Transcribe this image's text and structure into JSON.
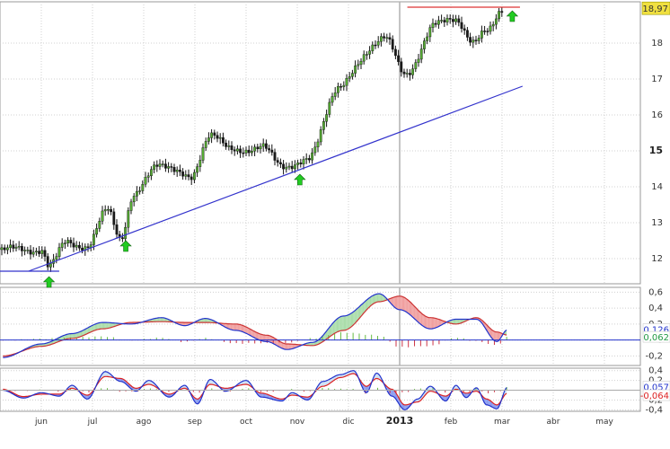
{
  "chart_data": [
    {
      "type": "candlestick",
      "panel": "price",
      "ylim": [
        11.3,
        19.15
      ],
      "y_ticks": [
        12,
        13,
        14,
        15,
        16,
        17,
        18
      ],
      "y_tick_labels": [
        "12",
        "13",
        "14",
        "15",
        "16",
        "17",
        "18"
      ],
      "bold_ticks": [
        "15"
      ],
      "last_value": 18.97,
      "last_value_label": "18,97",
      "x_months": [
        "jun",
        "jul",
        "ago",
        "sep",
        "oct",
        "nov",
        "dic",
        "2013",
        "feb",
        "mar",
        "abr",
        "may"
      ],
      "bold_months": [
        "2013"
      ],
      "series": [
        {
          "name": "close",
          "anchors": [
            {
              "month": 0,
              "value": 12.25
            },
            {
              "month": 0.15,
              "value": 11.75
            },
            {
              "month": 0.5,
              "value": 12.5
            },
            {
              "month": 0.9,
              "value": 12.3
            },
            {
              "month": 1.3,
              "value": 13.4
            },
            {
              "month": 1.55,
              "value": 12.6
            },
            {
              "month": 1.8,
              "value": 13.7
            },
            {
              "month": 2.3,
              "value": 14.7
            },
            {
              "month": 2.9,
              "value": 14.2
            },
            {
              "month": 3.3,
              "value": 15.5
            },
            {
              "month": 3.7,
              "value": 15.0
            },
            {
              "month": 4.3,
              "value": 15.1
            },
            {
              "month": 4.7,
              "value": 14.6
            },
            {
              "month": 5.2,
              "value": 14.7
            },
            {
              "month": 5.8,
              "value": 16.8
            },
            {
              "month": 6.7,
              "value": 18.2
            },
            {
              "month": 7.1,
              "value": 17.1
            },
            {
              "month": 7.7,
              "value": 18.5
            },
            {
              "month": 8.1,
              "value": 18.7
            },
            {
              "month": 8.45,
              "value": 18.0
            },
            {
              "month": 8.7,
              "value": 18.3
            },
            {
              "month": 9.0,
              "value": 18.97
            }
          ]
        }
      ],
      "trendlines": [
        {
          "name": "support",
          "color": "#3333cc",
          "from": {
            "month": -0.25,
            "value": 11.65
          },
          "to": {
            "month": 9.4,
            "value": 16.8
          }
        },
        {
          "name": "base",
          "color": "#3333cc",
          "from": {
            "month": -1.0,
            "value": 11.65
          },
          "to": {
            "month": 0.35,
            "value": 11.65
          }
        },
        {
          "name": "resistance",
          "color": "#dd3333",
          "from": {
            "month": 7.15,
            "value": 19.0
          },
          "to": {
            "month": 9.35,
            "value": 19.0
          }
        }
      ],
      "signals": [
        {
          "name": "buy",
          "month": 0.15,
          "value": 11.35
        },
        {
          "name": "buy",
          "month": 1.65,
          "value": 12.35
        },
        {
          "name": "buy",
          "month": 5.05,
          "value": 14.2
        },
        {
          "name": "buy",
          "month": 9.2,
          "value": 18.75
        }
      ],
      "colors": {
        "candle": "#111111",
        "up": "#55aa33",
        "down": "#1a1a1a",
        "label_bg": "#f0e040"
      }
    },
    {
      "type": "oscillator",
      "panel": "indicator_1",
      "ylim": [
        -0.32,
        0.66
      ],
      "y_ticks": [
        0.6,
        0.4,
        0.2,
        0,
        -0.2
      ],
      "y_tick_labels": [
        "0,6",
        "0,4",
        "0,2",
        "0",
        "-0,2"
      ],
      "last_values": [
        0.126,
        0.062
      ],
      "last_labels": [
        "0,126",
        "0,062"
      ],
      "series": [
        {
          "name": "fast",
          "anchors": [
            {
              "month": -0.75,
              "value": -0.22
            },
            {
              "month": 0.0,
              "value": -0.05
            },
            {
              "month": 0.6,
              "value": 0.08
            },
            {
              "month": 1.2,
              "value": 0.22
            },
            {
              "month": 1.75,
              "value": 0.2
            },
            {
              "month": 2.35,
              "value": 0.28
            },
            {
              "month": 2.8,
              "value": 0.18
            },
            {
              "month": 3.2,
              "value": 0.27
            },
            {
              "month": 3.8,
              "value": 0.12
            },
            {
              "month": 4.4,
              "value": -0.02
            },
            {
              "month": 4.8,
              "value": -0.12
            },
            {
              "month": 5.3,
              "value": -0.03
            },
            {
              "month": 5.9,
              "value": 0.3
            },
            {
              "month": 6.6,
              "value": 0.58
            },
            {
              "month": 7.0,
              "value": 0.38
            },
            {
              "month": 7.6,
              "value": 0.14
            },
            {
              "month": 8.1,
              "value": 0.26
            },
            {
              "month": 8.5,
              "value": 0.26
            },
            {
              "month": 8.9,
              "value": -0.02
            },
            {
              "month": 9.1,
              "value": 0.126
            }
          ]
        },
        {
          "name": "slow",
          "anchors": [
            {
              "month": -0.75,
              "value": -0.2
            },
            {
              "month": 0.0,
              "value": -0.08
            },
            {
              "month": 0.6,
              "value": 0.02
            },
            {
              "month": 1.2,
              "value": 0.14
            },
            {
              "month": 1.75,
              "value": 0.22
            },
            {
              "month": 2.35,
              "value": 0.23
            },
            {
              "month": 2.8,
              "value": 0.22
            },
            {
              "month": 3.2,
              "value": 0.22
            },
            {
              "month": 3.8,
              "value": 0.2
            },
            {
              "month": 4.4,
              "value": 0.06
            },
            {
              "month": 4.8,
              "value": -0.05
            },
            {
              "month": 5.3,
              "value": -0.07
            },
            {
              "month": 5.9,
              "value": 0.12
            },
            {
              "month": 6.6,
              "value": 0.48
            },
            {
              "month": 7.0,
              "value": 0.55
            },
            {
              "month": 7.6,
              "value": 0.28
            },
            {
              "month": 8.1,
              "value": 0.2
            },
            {
              "month": 8.5,
              "value": 0.28
            },
            {
              "month": 8.9,
              "value": 0.1
            },
            {
              "month": 9.1,
              "value": 0.062
            }
          ]
        }
      ],
      "colors": {
        "fast": "#2233cc",
        "slow": "#cc3333",
        "fill_up": "#aaddaa",
        "fill_down": "#f0a0a0",
        "hist_up": "#66bb44",
        "hist_down": "#cc3344",
        "label_fast": "#2233cc",
        "label_slow": "#229944"
      }
    },
    {
      "type": "oscillator",
      "panel": "indicator_2",
      "ylim": [
        -0.43,
        0.45
      ],
      "y_ticks": [
        0.4,
        0.2,
        0,
        -0.2,
        -0.4
      ],
      "y_tick_labels": [
        "0,4",
        "0,2",
        "0",
        "-0,2",
        "-0,4"
      ],
      "last_values": [
        0.057,
        -0.064
      ],
      "last_labels": [
        "0,057",
        "-0,064"
      ],
      "series": [
        {
          "name": "fast",
          "anchors": [
            {
              "month": -0.75,
              "value": 0.0
            },
            {
              "month": -0.35,
              "value": -0.16
            },
            {
              "month": 0.0,
              "value": -0.05
            },
            {
              "month": 0.35,
              "value": -0.12
            },
            {
              "month": 0.6,
              "value": 0.1
            },
            {
              "month": 0.9,
              "value": -0.18
            },
            {
              "month": 1.25,
              "value": 0.38
            },
            {
              "month": 1.55,
              "value": 0.18
            },
            {
              "month": 1.85,
              "value": -0.02
            },
            {
              "month": 2.1,
              "value": 0.2
            },
            {
              "month": 2.5,
              "value": -0.14
            },
            {
              "month": 2.8,
              "value": 0.1
            },
            {
              "month": 3.05,
              "value": -0.28
            },
            {
              "month": 3.3,
              "value": 0.22
            },
            {
              "month": 3.6,
              "value": -0.02
            },
            {
              "month": 4.0,
              "value": 0.2
            },
            {
              "month": 4.3,
              "value": -0.14
            },
            {
              "month": 4.7,
              "value": -0.22
            },
            {
              "month": 4.9,
              "value": -0.05
            },
            {
              "month": 5.2,
              "value": -0.2
            },
            {
              "month": 5.5,
              "value": 0.18
            },
            {
              "month": 5.85,
              "value": 0.32
            },
            {
              "month": 6.1,
              "value": 0.4
            },
            {
              "month": 6.35,
              "value": -0.05
            },
            {
              "month": 6.55,
              "value": 0.35
            },
            {
              "month": 6.85,
              "value": -0.12
            },
            {
              "month": 7.1,
              "value": -0.4
            },
            {
              "month": 7.35,
              "value": -0.18
            },
            {
              "month": 7.6,
              "value": 0.08
            },
            {
              "month": 7.9,
              "value": -0.22
            },
            {
              "month": 8.1,
              "value": 0.1
            },
            {
              "month": 8.3,
              "value": -0.15
            },
            {
              "month": 8.5,
              "value": 0.05
            },
            {
              "month": 8.7,
              "value": -0.3
            },
            {
              "month": 8.9,
              "value": -0.38
            },
            {
              "month": 9.1,
              "value": 0.057
            }
          ]
        },
        {
          "name": "slow",
          "anchors": [
            {
              "month": -0.75,
              "value": 0.02
            },
            {
              "month": -0.35,
              "value": -0.13
            },
            {
              "month": 0.0,
              "value": -0.08
            },
            {
              "month": 0.35,
              "value": -0.08
            },
            {
              "month": 0.6,
              "value": 0.04
            },
            {
              "month": 0.9,
              "value": -0.1
            },
            {
              "month": 1.25,
              "value": 0.28
            },
            {
              "month": 1.55,
              "value": 0.24
            },
            {
              "month": 1.85,
              "value": 0.04
            },
            {
              "month": 2.1,
              "value": 0.12
            },
            {
              "month": 2.5,
              "value": -0.08
            },
            {
              "month": 2.8,
              "value": 0.04
            },
            {
              "month": 3.05,
              "value": -0.18
            },
            {
              "month": 3.3,
              "value": 0.12
            },
            {
              "month": 3.6,
              "value": 0.04
            },
            {
              "month": 4.0,
              "value": 0.12
            },
            {
              "month": 4.3,
              "value": -0.06
            },
            {
              "month": 4.7,
              "value": -0.18
            },
            {
              "month": 4.9,
              "value": -0.1
            },
            {
              "month": 5.2,
              "value": -0.14
            },
            {
              "month": 5.5,
              "value": 0.08
            },
            {
              "month": 5.85,
              "value": 0.26
            },
            {
              "month": 6.1,
              "value": 0.34
            },
            {
              "month": 6.35,
              "value": 0.08
            },
            {
              "month": 6.55,
              "value": 0.24
            },
            {
              "month": 6.85,
              "value": 0.02
            },
            {
              "month": 7.1,
              "value": -0.3
            },
            {
              "month": 7.35,
              "value": -0.24
            },
            {
              "month": 7.6,
              "value": -0.02
            },
            {
              "month": 7.9,
              "value": -0.12
            },
            {
              "month": 8.1,
              "value": 0.02
            },
            {
              "month": 8.3,
              "value": -0.06
            },
            {
              "month": 8.5,
              "value": -0.02
            },
            {
              "month": 8.7,
              "value": -0.18
            },
            {
              "month": 8.9,
              "value": -0.3
            },
            {
              "month": 9.1,
              "value": -0.064
            }
          ]
        }
      ],
      "colors": {
        "fast": "#2233cc",
        "slow": "#dd2222",
        "fill_up": "#cce0f4",
        "fill_down": "#8899ee",
        "hist_up": "#66bb44",
        "hist_down": "#cc3344",
        "label_fast": "#2233cc",
        "label_slow": "#dd2222"
      }
    }
  ]
}
